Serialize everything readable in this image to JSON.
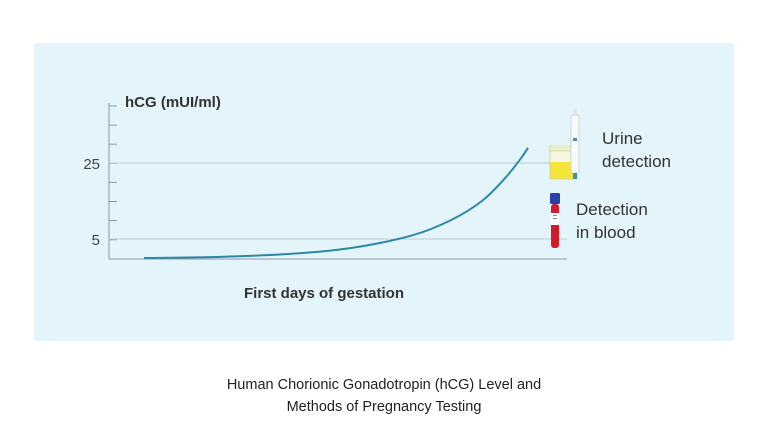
{
  "chart_data": {
    "type": "line",
    "ylabel": "hCG (mUI/ml)",
    "xlabel": "First days of gestation",
    "yticks": [
      "25",
      "5"
    ],
    "reference_lines": [
      {
        "y": 25,
        "label": "Urine detection",
        "label_lines": [
          "Urine",
          "detection"
        ],
        "icon": "urine-test-cup-icon"
      },
      {
        "y": 5,
        "label": "Detection in blood",
        "label_lines": [
          "Detection",
          "in blood"
        ],
        "icon": "blood-test-tube-icon"
      }
    ],
    "series": [
      {
        "points": [
          [
            0,
            0
          ],
          [
            0.2,
            0.3
          ],
          [
            0.4,
            1.2
          ],
          [
            0.55,
            2.8
          ],
          [
            0.7,
            6
          ],
          [
            0.8,
            10
          ],
          [
            0.88,
            15
          ],
          [
            0.94,
            21
          ],
          [
            0.98,
            26
          ],
          [
            1,
            29
          ]
        ]
      }
    ],
    "colors": {
      "curve": "#2f87a6",
      "grid": "#b9ccd4",
      "axis": "#8c9aa0",
      "panel": "#e3f4fb"
    }
  },
  "caption": {
    "line1": "Human Chorionic Gonadotropin (hCG) Level and",
    "line2": "Methods of Pregnancy Testing"
  }
}
